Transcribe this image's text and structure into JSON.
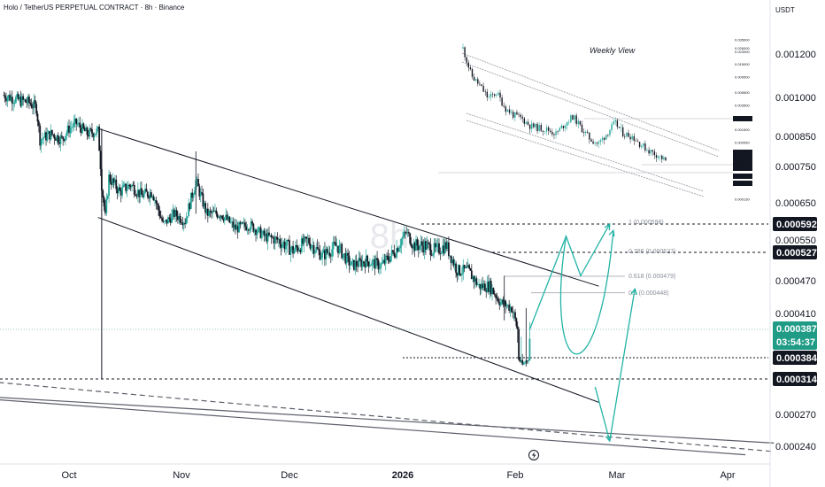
{
  "header": {
    "title": "Holo / TetherUS PERPETUAL CONTRACT · 8h · Binance",
    "currency": "USDT"
  },
  "watermark": "8h",
  "chart_data": {
    "type": "candlestick",
    "timeframe": "8h",
    "colors": {
      "up": "#26a69a",
      "down": "#131722",
      "current": "#1f9b86",
      "projection": "#22b3a5",
      "badge": "#131722"
    },
    "y_ticks": [
      "0.001200",
      "0.001000",
      "0.000850",
      "0.000750",
      "0.000650",
      "0.000550",
      "0.000470",
      "0.000410",
      "0.000270",
      "0.000240"
    ],
    "x_ticks": [
      "Oct",
      "Nov",
      "Dec",
      "2026",
      "Feb",
      "Mar",
      "Apr"
    ],
    "price_marks": [
      "0.000592",
      "0.000527",
      "0.000384",
      "0.000314"
    ],
    "current_price": {
      "value": "0.000387",
      "countdown": "03:54:37"
    },
    "fib_labels": [
      "1 (0.000598)",
      "0.786 (0.000527)",
      "0.618 (0.000479)",
      "0.5 (0.000448)"
    ],
    "close_path": [
      [
        "2025-09-13",
        0.00101
      ],
      [
        "2025-09-17",
        0.00099
      ],
      [
        "2025-09-20",
        0.00098
      ],
      [
        "2025-09-22",
        0.00096
      ],
      [
        "2025-09-23",
        0.00084
      ],
      [
        "2025-09-26",
        0.00086
      ],
      [
        "2025-09-29",
        0.00084
      ],
      [
        "2025-10-01",
        0.00088
      ],
      [
        "2025-10-03",
        0.0009
      ],
      [
        "2025-10-06",
        0.00086
      ],
      [
        "2025-10-09",
        0.00087
      ],
      [
        "2025-10-10",
        0.0007
      ],
      [
        "2025-10-11",
        0.00061
      ],
      [
        "2025-10-12",
        0.00072
      ],
      [
        "2025-10-15",
        0.00068
      ],
      [
        "2025-10-18",
        0.0007
      ],
      [
        "2025-10-21",
        0.00067
      ],
      [
        "2025-10-24",
        0.00068
      ],
      [
        "2025-10-27",
        0.00059
      ],
      [
        "2025-10-30",
        0.00062
      ],
      [
        "2025-11-02",
        0.0006
      ],
      [
        "2025-11-05",
        0.00071
      ],
      [
        "2025-11-08",
        0.00062
      ],
      [
        "2025-11-12",
        0.00062
      ],
      [
        "2025-11-16",
        0.00058
      ],
      [
        "2025-11-20",
        0.00059
      ],
      [
        "2025-11-24",
        0.00056
      ],
      [
        "2025-11-28",
        0.00055
      ],
      [
        "2025-12-02",
        0.00053
      ],
      [
        "2025-12-06",
        0.00055
      ],
      [
        "2025-12-10",
        0.00052
      ],
      [
        "2025-12-14",
        0.00054
      ],
      [
        "2025-12-18",
        0.0005
      ],
      [
        "2025-12-22",
        0.00051
      ],
      [
        "2025-12-26",
        0.0005
      ],
      [
        "2025-12-30",
        0.00053
      ],
      [
        "2026-01-02",
        0.00057
      ],
      [
        "2026-01-04",
        0.00054
      ],
      [
        "2026-01-07",
        0.00054
      ],
      [
        "2026-01-10",
        0.00053
      ],
      [
        "2026-01-13",
        0.00054
      ],
      [
        "2026-01-16",
        0.00049
      ],
      [
        "2026-01-19",
        0.00049
      ],
      [
        "2026-01-22",
        0.00046
      ],
      [
        "2026-01-25",
        0.00046
      ],
      [
        "2026-01-28",
        0.00043
      ],
      [
        "2026-01-31",
        0.00042
      ],
      [
        "2026-02-03",
        0.00036
      ],
      [
        "2026-02-05",
        0.000387
      ]
    ],
    "channel": {
      "upper": [
        [
          "2025-10-09",
          0.00088
        ],
        [
          "2026-02-24",
          0.00046
        ]
      ],
      "lower": [
        [
          "2025-10-09",
          0.00061
        ],
        [
          "2026-02-24",
          0.000285
        ]
      ]
    },
    "long_trendlines": {
      "top": [
        [
          "2025-08-28",
          0.000295
        ],
        [
          "2026-04-14",
          0.000243
        ]
      ],
      "dashed": [
        [
          "2025-08-28",
          0.000318
        ],
        [
          "2026-04-14",
          0.000235
        ]
      ],
      "bottom": [
        [
          "2025-08-28",
          0.000293
        ],
        [
          "2026-04-06",
          0.000232
        ]
      ]
    },
    "projections": {
      "bullish": [
        [
          "2026-02-05",
          0.000387
        ],
        [
          "2026-02-15",
          0.00056
        ],
        [
          "2026-02-19",
          0.00048
        ],
        [
          "2026-02-27",
          0.000592
        ]
      ],
      "alternate": [
        [
          "2026-02-15",
          0.00056
        ],
        [
          "2026-02-21",
          0.00033
        ],
        [
          "2026-02-28",
          0.000575
        ]
      ],
      "bearish": [
        [
          "2026-02-23",
          0.000304
        ],
        [
          "2026-02-27",
          0.000245
        ],
        [
          "2026-03-06",
          0.000455
        ]
      ]
    }
  },
  "inset": {
    "title": "Weekly View",
    "ticks": [
      "0.035000",
      "0.026000",
      "0.023000",
      "0.015000",
      "0.009500",
      "0.005500",
      "0.003500",
      "0.002300",
      "0.001500",
      "0.000950",
      "0.000594",
      "0.000384",
      "0.000130"
    ],
    "badges": [
      "0.001900",
      "0.000592",
      "0.000527",
      "0.000384",
      "0.000282",
      "0.000314"
    ],
    "badge_countdown": "3d 14h",
    "close_path": [
      [
        "w1",
        0.026
      ],
      [
        "w3",
        0.01
      ],
      [
        "w5",
        0.007
      ],
      [
        "w7",
        0.0045
      ],
      [
        "w9",
        0.0055
      ],
      [
        "w11",
        0.0032
      ],
      [
        "w13",
        0.0025
      ],
      [
        "w15",
        0.0022
      ],
      [
        "w17",
        0.0017
      ],
      [
        "w19",
        0.0016
      ],
      [
        "w21",
        0.0015
      ],
      [
        "w23",
        0.0013
      ],
      [
        "w25",
        0.0018
      ],
      [
        "w27",
        0.0024
      ],
      [
        "w29",
        0.0016
      ],
      [
        "w31",
        0.0011
      ],
      [
        "w33",
        0.0009
      ],
      [
        "w35",
        0.0013
      ],
      [
        "w37",
        0.0019
      ],
      [
        "w39",
        0.0013
      ],
      [
        "w41",
        0.0012
      ],
      [
        "w43",
        0.0009
      ],
      [
        "w45",
        0.00072
      ],
      [
        "w47",
        0.00062
      ],
      [
        "w49",
        0.0005
      ]
    ]
  }
}
